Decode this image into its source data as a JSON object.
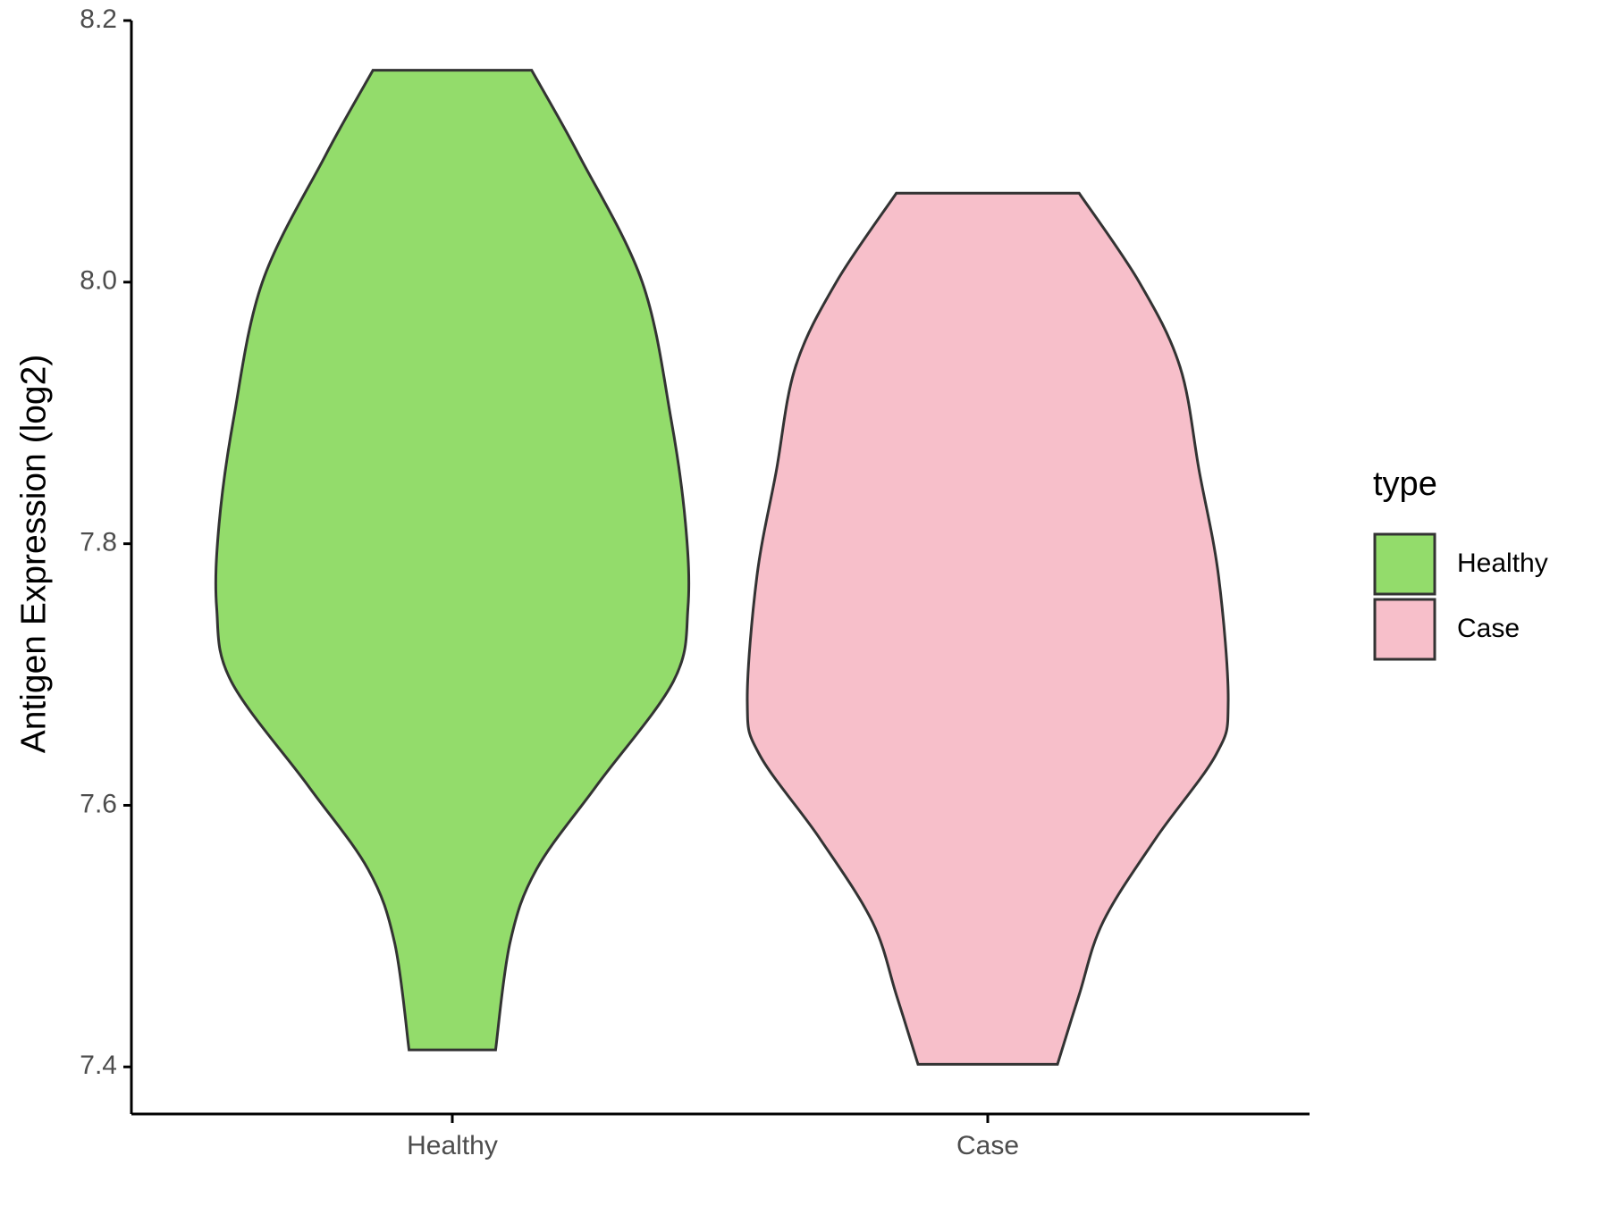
{
  "chart_data": {
    "type": "violin",
    "y_label": "Antigen Expression (log2)",
    "categories": [
      "Healthy",
      "Case"
    ],
    "legend_title": "type",
    "legend": "right",
    "ylim": [
      7.364,
      8.2
    ],
    "yticks": [
      7.4,
      7.6,
      7.8,
      {
        "value": 8,
        "label": "8.0"
      },
      8.2
    ],
    "series": [
      {
        "name": "Healthy",
        "color": "#93dc6b",
        "y": [
          8.162,
          8.096,
          8.0,
          7.895,
          7.815,
          7.751,
          7.695,
          7.615,
          7.551,
          7.495,
          7.413
        ],
        "density": [
          0.33,
          0.53,
          0.79,
          0.91,
          0.97,
          0.98,
          0.92,
          0.6,
          0.35,
          0.24,
          0.18
        ]
      },
      {
        "name": "Case",
        "color": "#f7bfca",
        "y": [
          8.068,
          8.0,
          7.935,
          7.855,
          7.775,
          7.679,
          7.639,
          7.575,
          7.511,
          7.455,
          7.402
        ],
        "density": [
          0.38,
          0.63,
          0.8,
          0.88,
          0.96,
          1.0,
          0.95,
          0.7,
          0.48,
          0.38,
          0.29
        ]
      }
    ]
  }
}
